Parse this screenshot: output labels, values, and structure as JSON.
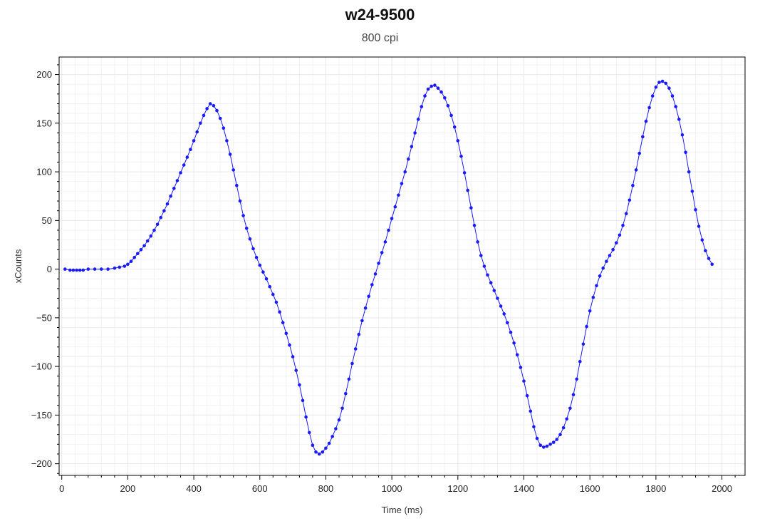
{
  "chart_data": {
    "type": "scatter",
    "title": "w24-9500",
    "subtitle": "800 cpi",
    "xlabel": "Time (ms)",
    "ylabel": "xCounts",
    "xlim": [
      -8,
      2070
    ],
    "ylim": [
      -212,
      218
    ],
    "xticks": [
      0,
      200,
      400,
      600,
      800,
      1000,
      1200,
      1400,
      1600,
      1800,
      2000
    ],
    "yticks": [
      -200,
      -150,
      -100,
      -50,
      0,
      50,
      100,
      150,
      200
    ],
    "grid": true,
    "legend": "none",
    "colors": {
      "series": "#1a1aff",
      "grid": "#e8e8e8",
      "axis": "#000000"
    },
    "series": [
      {
        "style": "line+markers",
        "points": [
          [
            10,
            0
          ],
          [
            25,
            -1
          ],
          [
            35,
            -1
          ],
          [
            45,
            -1
          ],
          [
            55,
            -1
          ],
          [
            65,
            -1
          ],
          [
            80,
            0
          ],
          [
            100,
            0
          ],
          [
            120,
            0
          ],
          [
            140,
            0
          ],
          [
            160,
            1
          ],
          [
            175,
            2
          ],
          [
            190,
            3
          ],
          [
            200,
            5
          ],
          [
            210,
            8
          ],
          [
            220,
            12
          ],
          [
            230,
            16
          ],
          [
            240,
            20
          ],
          [
            250,
            24
          ],
          [
            260,
            29
          ],
          [
            270,
            34
          ],
          [
            280,
            40
          ],
          [
            290,
            46
          ],
          [
            300,
            53
          ],
          [
            310,
            60
          ],
          [
            320,
            67
          ],
          [
            330,
            75
          ],
          [
            340,
            83
          ],
          [
            350,
            91
          ],
          [
            360,
            99
          ],
          [
            370,
            107
          ],
          [
            380,
            115
          ],
          [
            390,
            123
          ],
          [
            400,
            132
          ],
          [
            410,
            141
          ],
          [
            420,
            150
          ],
          [
            430,
            158
          ],
          [
            440,
            165
          ],
          [
            450,
            170
          ],
          [
            460,
            168
          ],
          [
            470,
            163
          ],
          [
            480,
            155
          ],
          [
            490,
            145
          ],
          [
            500,
            132
          ],
          [
            510,
            118
          ],
          [
            520,
            102
          ],
          [
            530,
            86
          ],
          [
            540,
            70
          ],
          [
            550,
            55
          ],
          [
            560,
            42
          ],
          [
            570,
            31
          ],
          [
            580,
            21
          ],
          [
            590,
            12
          ],
          [
            600,
            4
          ],
          [
            610,
            -3
          ],
          [
            620,
            -10
          ],
          [
            630,
            -18
          ],
          [
            640,
            -26
          ],
          [
            650,
            -34
          ],
          [
            660,
            -44
          ],
          [
            670,
            -55
          ],
          [
            680,
            -66
          ],
          [
            690,
            -78
          ],
          [
            700,
            -90
          ],
          [
            710,
            -104
          ],
          [
            720,
            -119
          ],
          [
            730,
            -135
          ],
          [
            740,
            -152
          ],
          [
            750,
            -168
          ],
          [
            760,
            -181
          ],
          [
            770,
            -188
          ],
          [
            780,
            -190
          ],
          [
            790,
            -188
          ],
          [
            800,
            -184
          ],
          [
            810,
            -179
          ],
          [
            820,
            -172
          ],
          [
            830,
            -164
          ],
          [
            840,
            -155
          ],
          [
            850,
            -143
          ],
          [
            860,
            -128
          ],
          [
            870,
            -113
          ],
          [
            880,
            -97
          ],
          [
            890,
            -82
          ],
          [
            900,
            -67
          ],
          [
            910,
            -53
          ],
          [
            920,
            -40
          ],
          [
            930,
            -28
          ],
          [
            940,
            -16
          ],
          [
            950,
            -5
          ],
          [
            960,
            6
          ],
          [
            970,
            17
          ],
          [
            980,
            28
          ],
          [
            990,
            40
          ],
          [
            1000,
            52
          ],
          [
            1010,
            64
          ],
          [
            1020,
            76
          ],
          [
            1030,
            88
          ],
          [
            1040,
            100
          ],
          [
            1050,
            113
          ],
          [
            1060,
            126
          ],
          [
            1070,
            140
          ],
          [
            1080,
            154
          ],
          [
            1090,
            167
          ],
          [
            1100,
            178
          ],
          [
            1110,
            185
          ],
          [
            1120,
            188
          ],
          [
            1130,
            189
          ],
          [
            1140,
            186
          ],
          [
            1150,
            182
          ],
          [
            1160,
            176
          ],
          [
            1170,
            168
          ],
          [
            1180,
            158
          ],
          [
            1190,
            146
          ],
          [
            1200,
            132
          ],
          [
            1210,
            116
          ],
          [
            1220,
            99
          ],
          [
            1230,
            81
          ],
          [
            1240,
            63
          ],
          [
            1250,
            45
          ],
          [
            1260,
            28
          ],
          [
            1270,
            14
          ],
          [
            1280,
            3
          ],
          [
            1290,
            -6
          ],
          [
            1300,
            -14
          ],
          [
            1310,
            -22
          ],
          [
            1320,
            -30
          ],
          [
            1330,
            -38
          ],
          [
            1340,
            -46
          ],
          [
            1350,
            -55
          ],
          [
            1360,
            -65
          ],
          [
            1370,
            -76
          ],
          [
            1380,
            -88
          ],
          [
            1390,
            -101
          ],
          [
            1400,
            -115
          ],
          [
            1410,
            -130
          ],
          [
            1420,
            -146
          ],
          [
            1430,
            -162
          ],
          [
            1440,
            -174
          ],
          [
            1450,
            -181
          ],
          [
            1460,
            -183
          ],
          [
            1470,
            -182
          ],
          [
            1480,
            -180
          ],
          [
            1490,
            -178
          ],
          [
            1500,
            -175
          ],
          [
            1510,
            -170
          ],
          [
            1520,
            -163
          ],
          [
            1530,
            -154
          ],
          [
            1540,
            -143
          ],
          [
            1550,
            -129
          ],
          [
            1560,
            -113
          ],
          [
            1570,
            -95
          ],
          [
            1580,
            -77
          ],
          [
            1590,
            -59
          ],
          [
            1600,
            -43
          ],
          [
            1610,
            -29
          ],
          [
            1620,
            -17
          ],
          [
            1630,
            -7
          ],
          [
            1640,
            1
          ],
          [
            1650,
            8
          ],
          [
            1660,
            14
          ],
          [
            1670,
            20
          ],
          [
            1680,
            27
          ],
          [
            1690,
            35
          ],
          [
            1700,
            45
          ],
          [
            1710,
            57
          ],
          [
            1720,
            71
          ],
          [
            1730,
            86
          ],
          [
            1740,
            102
          ],
          [
            1750,
            119
          ],
          [
            1760,
            136
          ],
          [
            1770,
            152
          ],
          [
            1780,
            166
          ],
          [
            1790,
            178
          ],
          [
            1800,
            187
          ],
          [
            1810,
            192
          ],
          [
            1820,
            193
          ],
          [
            1830,
            191
          ],
          [
            1840,
            186
          ],
          [
            1850,
            178
          ],
          [
            1860,
            167
          ],
          [
            1870,
            154
          ],
          [
            1880,
            138
          ],
          [
            1890,
            120
          ],
          [
            1900,
            100
          ],
          [
            1910,
            80
          ],
          [
            1920,
            61
          ],
          [
            1930,
            44
          ],
          [
            1940,
            30
          ],
          [
            1950,
            19
          ],
          [
            1960,
            11
          ],
          [
            1970,
            5
          ]
        ]
      }
    ]
  }
}
